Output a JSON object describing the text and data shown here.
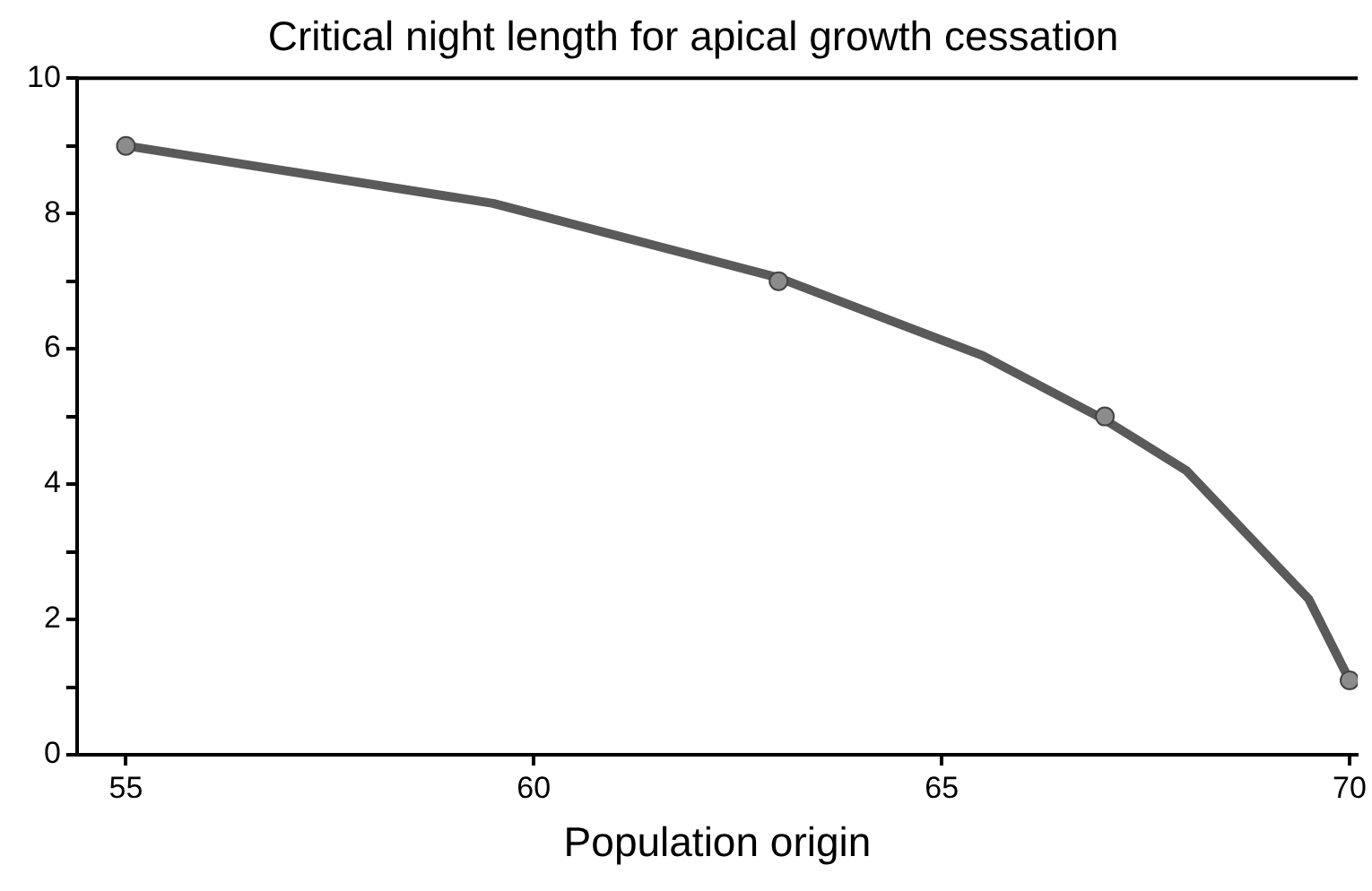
{
  "chart_data": {
    "type": "line",
    "title": "Critical night length for apical growth cessation",
    "xlabel": "Population origin",
    "xlim": [
      54.4,
      70.1
    ],
    "xticks": [
      55,
      60,
      65,
      70
    ],
    "ylim": [
      0,
      10
    ],
    "yticks": [
      0,
      {
        "value": 1,
        "label": null
      },
      2,
      {
        "value": 3,
        "label": null
      },
      4,
      {
        "value": 5,
        "label": null
      },
      6,
      {
        "value": 7,
        "label": null
      },
      8,
      {
        "value": 9,
        "label": null
      },
      10
    ],
    "grid": false,
    "legend": false,
    "series": [
      {
        "marker": "none",
        "color": "#5a5a5a",
        "x": [
          55,
          59.5,
          63,
          65.5,
          67,
          68,
          69.5,
          70
        ],
        "values": [
          9,
          8.15,
          7.05,
          5.9,
          4.95,
          4.2,
          2.3,
          1.1
        ]
      },
      {
        "type": "scatter",
        "marker": "circle",
        "color": "#8c8c8c",
        "x": [
          55,
          63,
          67,
          70
        ],
        "values": [
          9,
          7,
          5,
          1.1
        ]
      }
    ]
  }
}
